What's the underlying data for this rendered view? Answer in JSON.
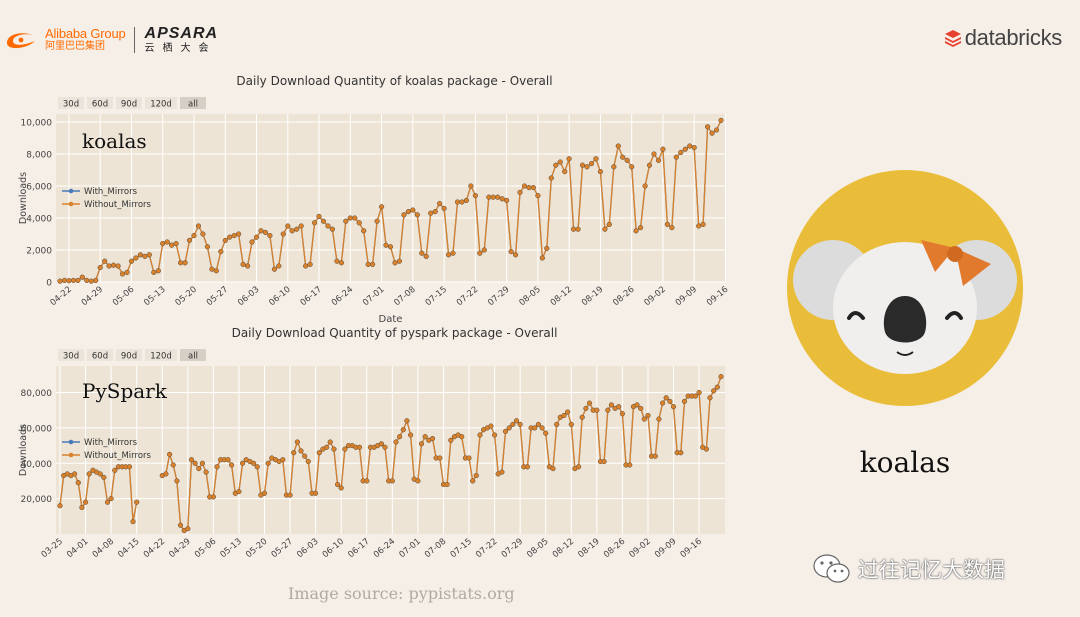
{
  "header": {
    "alibaba_en": "Alibaba Group",
    "alibaba_cn": "阿里巴巴集团",
    "apsara_en": "APSARA",
    "apsara_cn": "云栖大会",
    "databricks": "databricks"
  },
  "koala_label": "koalas",
  "image_source": "Image source: pypistats.org",
  "watermark": "过往记忆大数据",
  "colors": {
    "with_mirrors": "#4a7ab8",
    "without_mirrors": "#d9822b",
    "plot_bg": "#ede4d6",
    "koala_circle": "#e9bd3a",
    "bow": "#e27a2e"
  },
  "chart_data": [
    {
      "type": "line",
      "title": "Daily Download Quantity of koalas package - Overall",
      "inset_label": "koalas",
      "xlabel": "Date",
      "ylabel": "Downloads",
      "range_buttons": [
        "30d",
        "60d",
        "90d",
        "120d",
        "all"
      ],
      "legend_position": "left-middle",
      "grid": true,
      "ylim": [
        0,
        10500
      ],
      "yticks": [
        0,
        2000,
        4000,
        6000,
        8000,
        10000
      ],
      "ytick_labels": [
        "0",
        "2,000",
        "4,000",
        "6,000",
        "8,000",
        "10,000"
      ],
      "x_start_index": 0,
      "x_ticks": [
        {
          "i": 2,
          "label": "04-22"
        },
        {
          "i": 9,
          "label": "04-29"
        },
        {
          "i": 16,
          "label": "05-06"
        },
        {
          "i": 23,
          "label": "05-13"
        },
        {
          "i": 30,
          "label": "05-20"
        },
        {
          "i": 37,
          "label": "05-27"
        },
        {
          "i": 44,
          "label": "06-03"
        },
        {
          "i": 51,
          "label": "06-10"
        },
        {
          "i": 58,
          "label": "06-17"
        },
        {
          "i": 65,
          "label": "06-24"
        },
        {
          "i": 72,
          "label": "07-01"
        },
        {
          "i": 79,
          "label": "07-08"
        },
        {
          "i": 86,
          "label": "07-15"
        },
        {
          "i": 93,
          "label": "07-22"
        },
        {
          "i": 100,
          "label": "07-29"
        },
        {
          "i": 107,
          "label": "08-05"
        },
        {
          "i": 114,
          "label": "08-12"
        },
        {
          "i": 121,
          "label": "08-19"
        },
        {
          "i": 128,
          "label": "08-26"
        },
        {
          "i": 135,
          "label": "09-02"
        },
        {
          "i": 142,
          "label": "09-09"
        },
        {
          "i": 149,
          "label": "09-16"
        }
      ],
      "series": [
        {
          "name": "With_Mirrors",
          "values": [
            50,
            100,
            80,
            100,
            100,
            300,
            100,
            50,
            100,
            900,
            1300,
            1000,
            1050,
            1000,
            500,
            600,
            1300,
            1500,
            1700,
            1600,
            1700,
            600,
            700,
            2400,
            2500,
            2300,
            2400,
            1200,
            1200,
            2600,
            2900,
            3500,
            3000,
            2200,
            800,
            700,
            1900,
            2600,
            2800,
            2900,
            3000,
            1100,
            1000,
            2500,
            2800,
            3200,
            3100,
            2900,
            800,
            1000,
            3000,
            3500,
            3200,
            3300,
            3500,
            1000,
            1100,
            3700,
            4100,
            3800,
            3500,
            3300,
            1300,
            1200,
            3800,
            4000,
            4000,
            3700,
            3200,
            1100,
            1100,
            3800,
            4700,
            2300,
            2200,
            1200,
            1300,
            4200,
            4400,
            4500,
            4200,
            1800,
            1600,
            4300,
            4400,
            4900,
            4600,
            1700,
            1800,
            5000,
            5000,
            5100,
            6000,
            5400,
            1800,
            2000,
            5300,
            5300,
            5300,
            5200,
            5100,
            1900,
            1700,
            5600,
            6000,
            5900,
            5900,
            5400,
            1500,
            2100,
            6500,
            7300,
            7500,
            6900,
            7700,
            3300,
            3300,
            7300,
            7200,
            7400,
            7700,
            6900,
            3300,
            3600,
            7200,
            8500,
            7800,
            7600,
            7200,
            3200,
            3400,
            6000,
            7300,
            8000,
            7600,
            8300,
            3600,
            3400,
            7800,
            8100,
            8300,
            8500,
            8400,
            3500,
            3600,
            9700,
            9300,
            9500,
            10100
          ]
        },
        {
          "name": "Without_Mirrors",
          "values": [
            50,
            100,
            80,
            100,
            100,
            300,
            100,
            50,
            100,
            900,
            1300,
            1000,
            1050,
            1000,
            500,
            600,
            1300,
            1500,
            1700,
            1600,
            1700,
            600,
            700,
            2400,
            2500,
            2300,
            2400,
            1200,
            1200,
            2600,
            2900,
            3500,
            3000,
            2200,
            800,
            700,
            1900,
            2600,
            2800,
            2900,
            3000,
            1100,
            1000,
            2500,
            2800,
            3200,
            3100,
            2900,
            800,
            1000,
            3000,
            3500,
            3200,
            3300,
            3500,
            1000,
            1100,
            3700,
            4100,
            3800,
            3500,
            3300,
            1300,
            1200,
            3800,
            4000,
            4000,
            3700,
            3200,
            1100,
            1100,
            3800,
            4700,
            2300,
            2200,
            1200,
            1300,
            4200,
            4400,
            4500,
            4200,
            1800,
            1600,
            4300,
            4400,
            4900,
            4600,
            1700,
            1800,
            5000,
            5000,
            5100,
            6000,
            5400,
            1800,
            2000,
            5300,
            5300,
            5300,
            5200,
            5100,
            1900,
            1700,
            5600,
            6000,
            5900,
            5900,
            5400,
            1500,
            2100,
            6500,
            7300,
            7500,
            6900,
            7700,
            3300,
            3300,
            7300,
            7200,
            7400,
            7700,
            6900,
            3300,
            3600,
            7200,
            8500,
            7800,
            7600,
            7200,
            3200,
            3400,
            6000,
            7300,
            8000,
            7600,
            8300,
            3600,
            3400,
            7800,
            8100,
            8300,
            8500,
            8400,
            3500,
            3600,
            9700,
            9300,
            9500,
            10100
          ]
        }
      ]
    },
    {
      "type": "line",
      "title": "Daily Download Quantity of pyspark package - Overall",
      "inset_label": "PySpark",
      "xlabel": "",
      "ylabel": "Downloads",
      "range_buttons": [
        "30d",
        "60d",
        "90d",
        "120d",
        "all"
      ],
      "legend_position": "left-middle",
      "grid": true,
      "ylim": [
        0,
        95000
      ],
      "yticks": [
        20000,
        40000,
        60000,
        80000
      ],
      "ytick_labels": [
        "20,000",
        "40,000",
        "60,000",
        "80,000"
      ],
      "x_ticks": [
        {
          "i": 0,
          "label": "03-25"
        },
        {
          "i": 7,
          "label": "04-01"
        },
        {
          "i": 14,
          "label": "04-08"
        },
        {
          "i": 21,
          "label": "04-15"
        },
        {
          "i": 28,
          "label": "04-22"
        },
        {
          "i": 35,
          "label": "04-29"
        },
        {
          "i": 42,
          "label": "05-06"
        },
        {
          "i": 49,
          "label": "05-13"
        },
        {
          "i": 56,
          "label": "05-20"
        },
        {
          "i": 63,
          "label": "05-27"
        },
        {
          "i": 70,
          "label": "06-03"
        },
        {
          "i": 77,
          "label": "06-10"
        },
        {
          "i": 84,
          "label": "06-17"
        },
        {
          "i": 91,
          "label": "06-24"
        },
        {
          "i": 98,
          "label": "07-01"
        },
        {
          "i": 105,
          "label": "07-08"
        },
        {
          "i": 112,
          "label": "07-15"
        },
        {
          "i": 119,
          "label": "07-22"
        },
        {
          "i": 126,
          "label": "07-29"
        },
        {
          "i": 133,
          "label": "08-05"
        },
        {
          "i": 140,
          "label": "08-12"
        },
        {
          "i": 147,
          "label": "08-19"
        },
        {
          "i": 154,
          "label": "08-26"
        },
        {
          "i": 161,
          "label": "09-02"
        },
        {
          "i": 168,
          "label": "09-09"
        },
        {
          "i": 175,
          "label": "09-16"
        }
      ],
      "series": [
        {
          "name": "With_Mirrors",
          "values": [
            16000,
            33000,
            34000,
            33000,
            34000,
            29000,
            15000,
            18000,
            34000,
            36000,
            35000,
            34000,
            32000,
            18000,
            20000,
            36000,
            38000,
            38000,
            38000,
            38000,
            7000,
            18000,
            null,
            null,
            null,
            null,
            null,
            null,
            33000,
            34000,
            45000,
            39000,
            30000,
            5000,
            2000,
            3000,
            42000,
            40000,
            37000,
            40000,
            35000,
            21000,
            21000,
            38000,
            42000,
            42000,
            42000,
            39000,
            23000,
            24000,
            40000,
            42000,
            41000,
            40000,
            38000,
            22000,
            23000,
            40000,
            43000,
            42000,
            41000,
            42000,
            22000,
            22000,
            46000,
            52000,
            47000,
            44000,
            41000,
            23000,
            23000,
            46000,
            48000,
            49000,
            52000,
            48000,
            28000,
            26000,
            48000,
            50000,
            50000,
            49000,
            49000,
            30000,
            30000,
            49000,
            49000,
            50000,
            51000,
            49000,
            30000,
            30000,
            52000,
            55000,
            59000,
            64000,
            56000,
            31000,
            30000,
            51000,
            55000,
            53000,
            54000,
            43000,
            43000,
            28000,
            28000,
            53000,
            55000,
            56000,
            55000,
            43000,
            43000,
            30000,
            33000,
            56000,
            59000,
            60000,
            61000,
            56000,
            34000,
            35000,
            58000,
            60000,
            62000,
            64000,
            62000,
            38000,
            38000,
            60000,
            60000,
            62000,
            60000,
            57000,
            38000,
            37000,
            62000,
            66000,
            67000,
            69000,
            62000,
            37000,
            38000,
            66000,
            71000,
            74000,
            70000,
            70000,
            41000,
            41000,
            70000,
            73000,
            71000,
            72000,
            68000,
            39000,
            39000,
            72000,
            73000,
            71000,
            65000,
            67000,
            44000,
            44000,
            65000,
            74000,
            77000,
            75000,
            72000,
            46000,
            46000,
            75000,
            78000,
            78000,
            78000,
            80000,
            49000,
            48000,
            77000,
            81000,
            83000,
            89000
          ]
        },
        {
          "name": "Without_Mirrors",
          "values": [
            16000,
            33000,
            34000,
            33000,
            34000,
            29000,
            15000,
            18000,
            34000,
            36000,
            35000,
            34000,
            32000,
            18000,
            20000,
            36000,
            38000,
            38000,
            38000,
            38000,
            7000,
            18000,
            null,
            null,
            null,
            null,
            null,
            null,
            33000,
            34000,
            45000,
            39000,
            30000,
            5000,
            2000,
            3000,
            42000,
            40000,
            37000,
            40000,
            35000,
            21000,
            21000,
            38000,
            42000,
            42000,
            42000,
            39000,
            23000,
            24000,
            40000,
            42000,
            41000,
            40000,
            38000,
            22000,
            23000,
            40000,
            43000,
            42000,
            41000,
            42000,
            22000,
            22000,
            46000,
            52000,
            47000,
            44000,
            41000,
            23000,
            23000,
            46000,
            48000,
            49000,
            52000,
            48000,
            28000,
            26000,
            48000,
            50000,
            50000,
            49000,
            49000,
            30000,
            30000,
            49000,
            49000,
            50000,
            51000,
            49000,
            30000,
            30000,
            52000,
            55000,
            59000,
            64000,
            56000,
            31000,
            30000,
            51000,
            55000,
            53000,
            54000,
            43000,
            43000,
            28000,
            28000,
            53000,
            55000,
            56000,
            55000,
            43000,
            43000,
            30000,
            33000,
            56000,
            59000,
            60000,
            61000,
            56000,
            34000,
            35000,
            58000,
            60000,
            62000,
            64000,
            62000,
            38000,
            38000,
            60000,
            60000,
            62000,
            60000,
            57000,
            38000,
            37000,
            62000,
            66000,
            67000,
            69000,
            62000,
            37000,
            38000,
            66000,
            71000,
            74000,
            70000,
            70000,
            41000,
            41000,
            70000,
            73000,
            71000,
            72000,
            68000,
            39000,
            39000,
            72000,
            73000,
            71000,
            65000,
            67000,
            44000,
            44000,
            65000,
            74000,
            77000,
            75000,
            72000,
            46000,
            46000,
            75000,
            78000,
            78000,
            78000,
            80000,
            49000,
            48000,
            77000,
            81000,
            83000,
            89000
          ]
        }
      ]
    }
  ]
}
